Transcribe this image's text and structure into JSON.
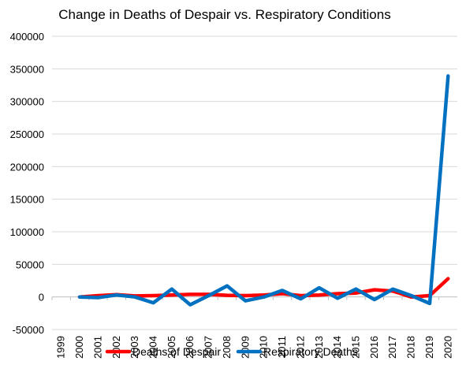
{
  "chart_data": {
    "type": "line",
    "title": "Change in Deaths of Despair vs. Respiratory Conditions",
    "xlabel": "",
    "ylabel": "",
    "categories": [
      "1999",
      "2000",
      "2001",
      "2002",
      "2003",
      "2004",
      "2005",
      "2006",
      "2007",
      "2008",
      "2009",
      "2010",
      "2011",
      "2012",
      "2013",
      "2014",
      "2015",
      "2016",
      "2017",
      "2018",
      "2019",
      "2020"
    ],
    "ylim": [
      -50000,
      400000
    ],
    "yticks": [
      -50000,
      0,
      50000,
      100000,
      150000,
      200000,
      250000,
      300000,
      350000,
      400000
    ],
    "ytick_labels": [
      "-50000",
      "0",
      "50000",
      "100000",
      "150000",
      "200000",
      "250000",
      "300000",
      "350000",
      "400000"
    ],
    "grid": true,
    "legend_position": "bottom",
    "series": [
      {
        "name": "Deaths of Despair",
        "color": "#ff0000",
        "values": [
          null,
          0,
          2000,
          3500,
          1500,
          2000,
          3000,
          4000,
          4000,
          2500,
          2000,
          3000,
          5000,
          2000,
          3000,
          5000,
          6000,
          11000,
          9000,
          0,
          2000,
          28000
        ]
      },
      {
        "name": "Respiratory Deaths",
        "color": "#0070c0",
        "values": [
          null,
          0,
          -1000,
          3000,
          0,
          -9000,
          12000,
          -12000,
          2000,
          17000,
          -6000,
          0,
          10000,
          -3000,
          14000,
          -2000,
          12000,
          -4000,
          12000,
          2000,
          -10000,
          339000
        ]
      }
    ]
  }
}
